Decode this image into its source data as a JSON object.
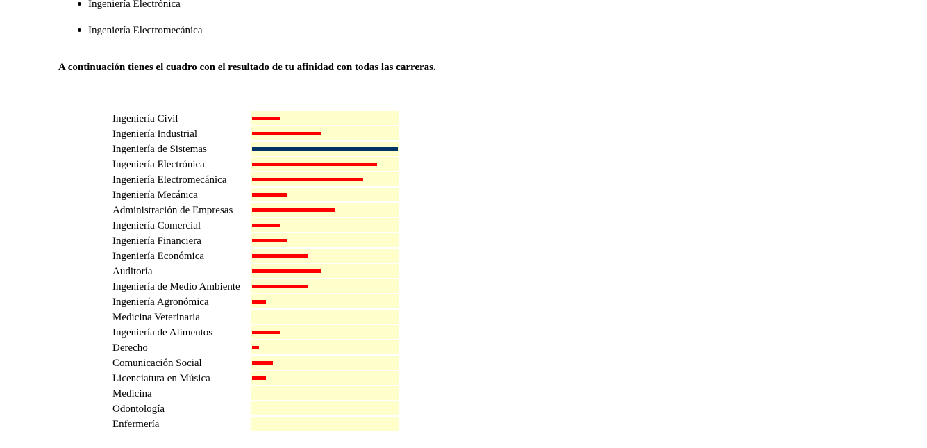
{
  "recommended": [
    "Ingeniería Electrónica",
    "Ingeniería Electromecánica"
  ],
  "intro_text": "A continuación tienes el cuadro con el resultado de tu afinidad con todas las carreras.",
  "chart_data": {
    "type": "bar",
    "orientation": "horizontal",
    "categories": [
      "Ingeniería Civil",
      "Ingeniería Industrial",
      "Ingeniería de Sistemas",
      "Ingeniería Electrónica",
      "Ingeniería Electromecánica",
      "Ingeniería Mecánica",
      "Administración de Empresas",
      "Ingeniería Comercial",
      "Ingeniería Financiera",
      "Ingeniería Económica",
      "Auditoría",
      "Ingeniería de Medio Ambiente",
      "Ingeniería Agronómica",
      "Medicina Veterinaria",
      "Ingeniería de Alimentos",
      "Derecho",
      "Comunicación Social",
      "Licenciatura en Música",
      "Medicina",
      "Odontología",
      "Enfermería"
    ],
    "values": [
      4,
      10,
      21,
      18,
      16,
      5,
      12,
      4,
      5,
      8,
      10,
      8,
      2,
      0,
      4,
      1,
      3,
      2,
      0,
      0,
      0
    ],
    "max": 21,
    "highlight_index": 2,
    "bar_color": "#ff0000",
    "highlight_color": "#003366",
    "track_color": "#ffffcc",
    "title": "",
    "xlabel": "",
    "ylabel": ""
  }
}
